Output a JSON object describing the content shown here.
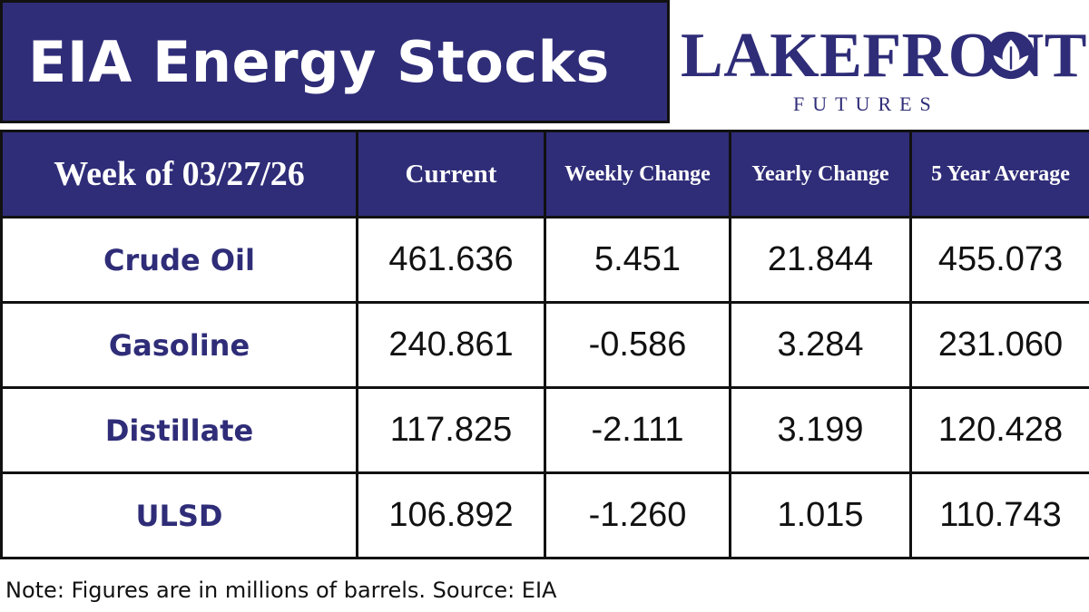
{
  "header": {
    "title": "EIA Energy Stocks"
  },
  "brand": {
    "name": "LAKEFRONT",
    "subtitle": "FUTURES",
    "icon": "leaf-icon",
    "color": "#2f2d78"
  },
  "table": {
    "columns": [
      "Week of 03/27/26",
      "Current",
      "Weekly Change",
      "Yearly Change",
      "5 Year Average"
    ],
    "rows": [
      {
        "label": "Crude Oil",
        "current": "461.636",
        "weekly_change": "5.451",
        "yearly_change": "21.844",
        "five_year_average": "455.073"
      },
      {
        "label": "Gasoline",
        "current": "240.861",
        "weekly_change": "-0.586",
        "yearly_change": "3.284",
        "five_year_average": "231.060"
      },
      {
        "label": "Distillate",
        "current": "117.825",
        "weekly_change": "-2.111",
        "yearly_change": "3.199",
        "five_year_average": "120.428"
      },
      {
        "label": "ULSD",
        "current": "106.892",
        "weekly_change": "-1.260",
        "yearly_change": "1.015",
        "five_year_average": "110.743"
      }
    ]
  },
  "footer": {
    "note": "Note: Figures are in millions of barrels. Source: EIA"
  },
  "colors": {
    "header_background": "#2f2d78",
    "border": "#111111",
    "text": "#111111"
  }
}
